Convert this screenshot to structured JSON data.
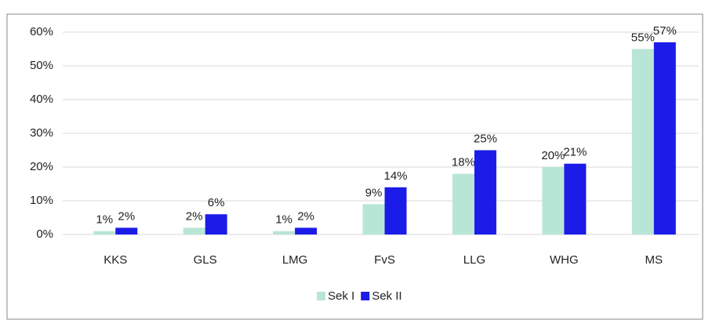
{
  "chart_data": {
    "type": "bar",
    "categories": [
      "KKS",
      "GLS",
      "LMG",
      "FvS",
      "LLG",
      "WHG",
      "MS"
    ],
    "series": [
      {
        "name": "Sek I",
        "color": "#b8e6d6",
        "values": [
          1,
          2,
          1,
          9,
          18,
          20,
          55
        ],
        "value_labels": [
          "1%",
          "2%",
          "1%",
          "9%",
          "18%",
          "20%",
          "55%"
        ]
      },
      {
        "name": "Sek II",
        "color": "#1c1ce8",
        "values": [
          2,
          6,
          2,
          14,
          25,
          21,
          57
        ],
        "value_labels": [
          "2%",
          "6%",
          "2%",
          "14%",
          "25%",
          "21%",
          "57%"
        ]
      }
    ],
    "ylim": [
      0,
      60
    ],
    "yticks": [
      {
        "value": 0,
        "label": "0%"
      },
      {
        "value": 10,
        "label": "10%"
      },
      {
        "value": 20,
        "label": "20%"
      },
      {
        "value": 30,
        "label": "30%"
      },
      {
        "value": 40,
        "label": "40%"
      },
      {
        "value": 50,
        "label": "50%"
      },
      {
        "value": 60,
        "label": "60%"
      }
    ],
    "grid": true,
    "legend": "bottom"
  }
}
